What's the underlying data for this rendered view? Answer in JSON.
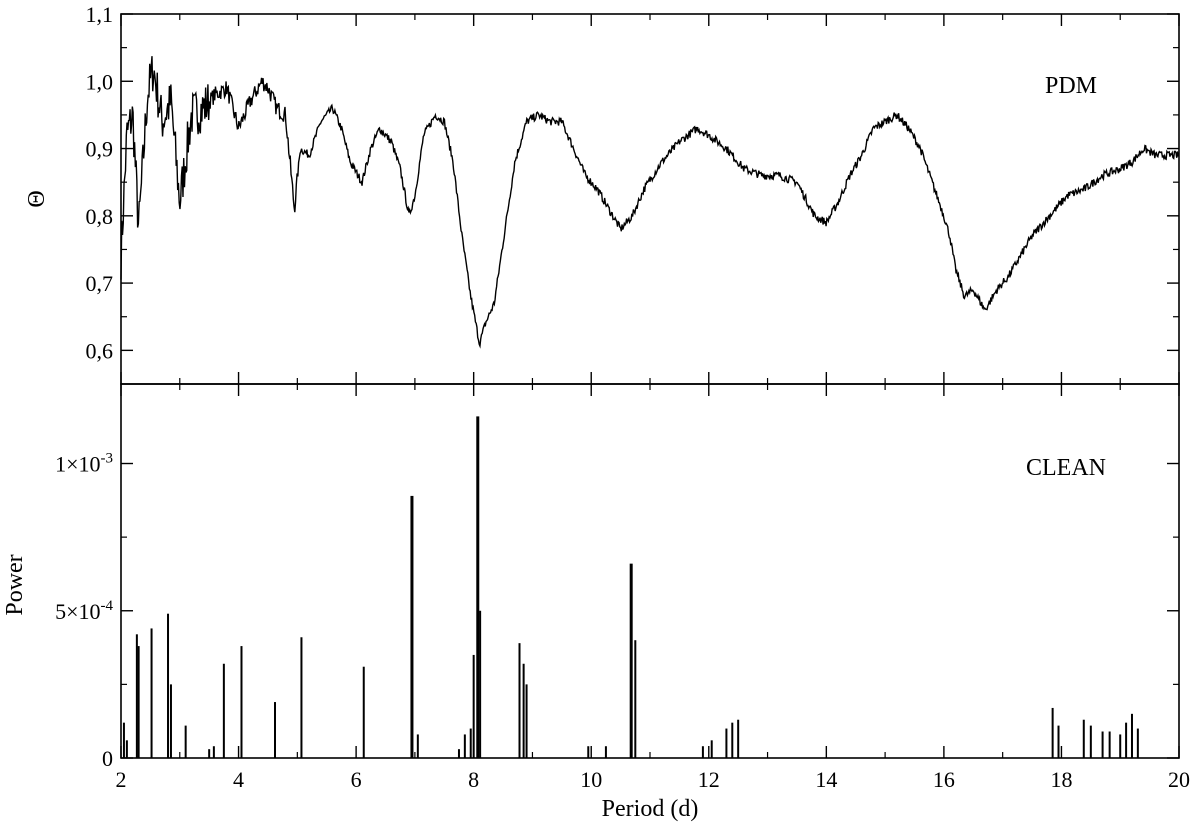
{
  "chart_data": [
    {
      "type": "line",
      "label": "PDM",
      "ylabel": "Θ",
      "xlim": [
        2,
        20
      ],
      "ylim": [
        0.55,
        1.1
      ],
      "x_ticks": [
        2,
        4,
        6,
        8,
        10,
        12,
        14,
        16,
        18,
        20
      ],
      "y_ticks": [
        0.6,
        0.7,
        0.8,
        0.9,
        1.0,
        1.1
      ],
      "y_tick_labels": [
        "0,6",
        "0,7",
        "0,8",
        "0,9",
        "1,0",
        "1,1"
      ],
      "series": [
        {
          "x": [
            2.0,
            2.1,
            2.2,
            2.3,
            2.45,
            2.55,
            2.7,
            2.85,
            3.0,
            3.2,
            3.4,
            3.6,
            3.8,
            4.0,
            4.2,
            4.4,
            4.5,
            4.65,
            4.8,
            4.95,
            5.05,
            5.2,
            5.4,
            5.6,
            5.75,
            5.9,
            6.1,
            6.25,
            6.4,
            6.6,
            6.75,
            6.9,
            7.0,
            7.15,
            7.35,
            7.5,
            7.65,
            7.8,
            7.95,
            8.1,
            8.2,
            8.35,
            8.5,
            8.7,
            8.9,
            9.1,
            9.3,
            9.5,
            9.7,
            9.9,
            10.1,
            10.3,
            10.5,
            10.7,
            10.9,
            11.2,
            11.5,
            11.8,
            12.0,
            12.3,
            12.6,
            12.9,
            13.2,
            13.5,
            13.8,
            14.0,
            14.2,
            14.4,
            14.6,
            14.8,
            15.0,
            15.2,
            15.4,
            15.6,
            15.8,
            16.0,
            16.1,
            16.2,
            16.35,
            16.5,
            16.7,
            16.9,
            17.1,
            17.3,
            17.5,
            17.8,
            18.1,
            18.4,
            18.7,
            19.0,
            19.2,
            19.4,
            19.6,
            19.8,
            20.0
          ],
          "y": [
            0.74,
            0.92,
            0.95,
            0.78,
            0.98,
            1.02,
            0.94,
            0.97,
            0.82,
            0.95,
            0.96,
            0.98,
            0.99,
            0.93,
            0.97,
            1.0,
            0.99,
            0.96,
            0.95,
            0.81,
            0.9,
            0.89,
            0.94,
            0.96,
            0.93,
            0.88,
            0.85,
            0.9,
            0.93,
            0.91,
            0.87,
            0.8,
            0.83,
            0.92,
            0.95,
            0.94,
            0.88,
            0.77,
            0.68,
            0.61,
            0.64,
            0.67,
            0.76,
            0.88,
            0.94,
            0.95,
            0.94,
            0.94,
            0.9,
            0.86,
            0.84,
            0.81,
            0.78,
            0.8,
            0.84,
            0.88,
            0.91,
            0.93,
            0.92,
            0.9,
            0.87,
            0.86,
            0.86,
            0.85,
            0.8,
            0.79,
            0.82,
            0.86,
            0.89,
            0.93,
            0.94,
            0.95,
            0.93,
            0.9,
            0.85,
            0.8,
            0.77,
            0.72,
            0.68,
            0.69,
            0.66,
            0.69,
            0.71,
            0.74,
            0.77,
            0.8,
            0.83,
            0.84,
            0.86,
            0.87,
            0.88,
            0.9,
            0.89,
            0.89,
            0.89
          ]
        }
      ]
    },
    {
      "type": "bar",
      "label": "CLEAN",
      "xlabel": "Period (d)",
      "ylabel": "Power",
      "xlim": [
        2,
        20
      ],
      "ylim": [
        0,
        0.00127
      ],
      "x_ticks": [
        2,
        4,
        6,
        8,
        10,
        12,
        14,
        16,
        18,
        20
      ],
      "x_tick_labels": [
        "2",
        "4",
        "6",
        "8",
        "10",
        "12",
        "14",
        "16",
        "18",
        "20"
      ],
      "y_ticks": [
        0,
        0.0005,
        0.001
      ],
      "y_tick_labels": [
        {
          "mantissa": "0",
          "exponent": ""
        },
        {
          "mantissa": "5×10",
          "exponent": "-4"
        },
        {
          "mantissa": "1×10",
          "exponent": "-3"
        }
      ],
      "series": [
        {
          "x": [
            2.05,
            2.1,
            2.27,
            2.3,
            2.52,
            2.8,
            2.85,
            3.1,
            3.5,
            3.58,
            3.75,
            4.05,
            4.62,
            5.07,
            6.13,
            6.95,
            7.05,
            7.75,
            7.85,
            7.95,
            8.0,
            8.07,
            8.11,
            8.78,
            8.85,
            8.9,
            9.95,
            10.25,
            10.68,
            10.75,
            11.9,
            12.05,
            12.3,
            12.4,
            12.5,
            17.85,
            17.95,
            18.38,
            18.5,
            18.7,
            18.82,
            19.0,
            19.1,
            19.2,
            19.3
          ],
          "values": [
            0.00012,
            6e-05,
            0.00042,
            0.00038,
            0.00044,
            0.00049,
            0.00025,
            0.00011,
            3e-05,
            4e-05,
            0.00032,
            0.00038,
            0.00019,
            0.00041,
            0.00031,
            0.00089,
            8e-05,
            3e-05,
            8e-05,
            0.0001,
            0.00035,
            0.00116,
            0.0005,
            0.00039,
            0.00032,
            0.00025,
            4e-05,
            4e-05,
            0.00066,
            0.0004,
            4e-05,
            6e-05,
            0.0001,
            0.00012,
            0.00013,
            0.00017,
            0.00011,
            0.00013,
            0.00011,
            9e-05,
            9e-05,
            8e-05,
            0.00012,
            0.00015,
            0.0001
          ]
        }
      ]
    }
  ]
}
